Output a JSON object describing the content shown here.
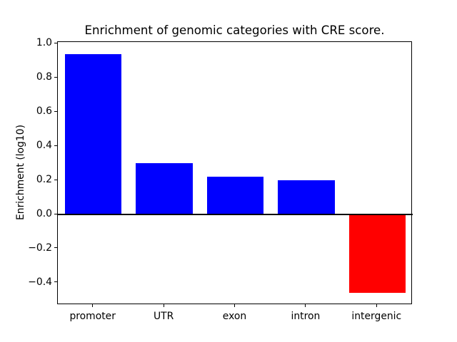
{
  "chart_data": {
    "type": "bar",
    "title": "Enrichment of genomic categories with CRE score.",
    "xlabel": "",
    "ylabel": "Enrichment (log10)",
    "categories": [
      "promoter",
      "UTR",
      "exon",
      "intron",
      "intergenic"
    ],
    "values": [
      0.94,
      0.3,
      0.22,
      0.2,
      -0.46
    ],
    "bar_colors": [
      "#0000ff",
      "#0000ff",
      "#0000ff",
      "#0000ff",
      "#ff0000"
    ],
    "positive_color": "#0000ff",
    "negative_color": "#ff0000",
    "yticks": [
      1.0,
      0.8,
      0.6,
      0.4,
      0.2,
      0.0,
      -0.2,
      -0.4
    ],
    "ytick_labels": [
      "1.0",
      "0.8",
      "0.6",
      "0.4",
      "0.2",
      "0.0",
      "−0.2",
      "−0.4"
    ],
    "ylim": [
      -0.53,
      1.01
    ],
    "grid": false,
    "zero_line": true,
    "legend_position": "none",
    "background_color": "#ffffff",
    "bar_width_fraction": 0.8
  }
}
